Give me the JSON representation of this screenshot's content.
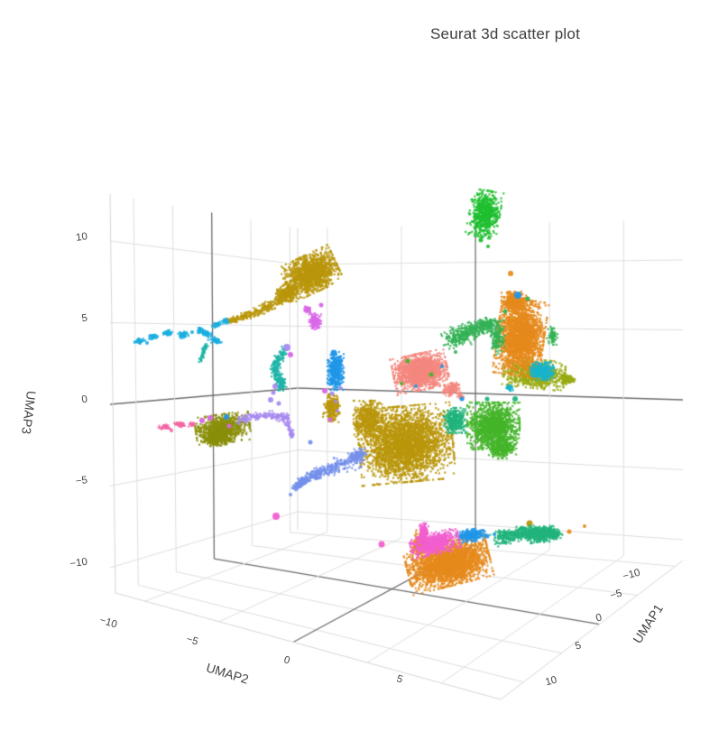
{
  "title": "Seurat 3d scatter plot",
  "chart_data": {
    "type": "scatter",
    "subtype": "scatter3d-umap",
    "title": "Seurat 3d scatter plot",
    "legend": "none shown",
    "grid": "on",
    "axes": {
      "x": {
        "label": "UMAP1",
        "range": [
          -11,
          13
        ],
        "ticks": [
          -10,
          -5,
          0,
          5,
          10
        ],
        "visible_tick_labels": [
          -10,
          -5,
          0,
          5,
          10
        ]
      },
      "y": {
        "label": "UMAP2",
        "range": [
          -12,
          14
        ],
        "ticks": [
          -10,
          -5,
          0,
          5,
          10
        ],
        "visible_tick_labels": [
          -10,
          -5,
          0,
          5
        ]
      },
      "z": {
        "label": "UMAP3",
        "range": [
          -11.5,
          12.9
        ],
        "ticks": [
          10,
          5,
          0,
          -5,
          -10
        ],
        "visible_tick_labels": [
          10,
          5,
          0,
          -5,
          -10
        ]
      }
    },
    "colors": {
      "grid_line": "#dedede",
      "zero_line": "#6e6e6e",
      "edge_line": "#d6d6d6",
      "title_text": "#3d3d3d",
      "tick_text": "#444444"
    },
    "palette": [
      "#1FBF2F",
      "#B9960B",
      "#8A8F0A",
      "#9AAB12",
      "#E68A1C",
      "#F4877E",
      "#21B47C",
      "#33B255",
      "#44B52A",
      "#20B5A8",
      "#2196E8",
      "#1BAEE0",
      "#18B4CE",
      "#7591EA",
      "#A78AF0",
      "#D966E8",
      "#F25FD0",
      "#F467A4"
    ],
    "clusters": [
      {
        "id": "cluster-green-top",
        "color": "#1FBF2F",
        "blobs": [
          [
            537,
            237,
            17,
            26,
            10,
            650
          ]
        ],
        "dots": [
          [
            533,
            266,
            2.5
          ],
          [
            541,
            273,
            2
          ]
        ]
      },
      {
        "id": "cluster-mustard",
        "color": "#B9960B",
        "blobs": [
          [
            345,
            303,
            30,
            21,
            -25,
            1400
          ],
          [
            318,
            325,
            13,
            10,
            -20,
            300
          ],
          [
            368,
            452,
            9,
            15,
            5,
            260
          ],
          [
            450,
            492,
            52,
            42,
            -5,
            3000
          ],
          [
            408,
            464,
            16,
            20,
            0,
            500
          ]
        ],
        "trails": [
          {
            "pts": [
              [
                312,
                331
              ],
              [
                296,
                340
              ],
              [
                281,
                347
              ],
              [
                266,
                352
              ],
              [
                253,
                356
              ]
            ],
            "r": [
              6,
              3
            ],
            "n": 260
          }
        ],
        "dots": [
          [
            587,
            580,
            3.5
          ]
        ]
      },
      {
        "id": "cluster-olive",
        "color": "#8A8F0A",
        "blobs": [
          [
            247,
            475,
            30,
            16,
            -8,
            800
          ],
          [
            240,
            486,
            17,
            8,
            -5,
            250
          ]
        ],
        "dots": []
      },
      {
        "id": "cluster-yellowgreen",
        "color": "#9AAB12",
        "blobs": [
          [
            592,
            414,
            34,
            16,
            6,
            850
          ],
          [
            628,
            420,
            9,
            6,
            0,
            100
          ]
        ],
        "dots": []
      },
      {
        "id": "cluster-orange",
        "color": "#E68A1C",
        "blobs": [
          [
            577,
            374,
            26,
            42,
            8,
            2200
          ],
          [
            570,
            334,
            14,
            11,
            0,
            350
          ],
          [
            497,
            624,
            46,
            25,
            -14,
            2600
          ],
          [
            466,
            602,
            8,
            13,
            15,
            250
          ]
        ],
        "dots": [
          [
            566,
            303,
            3
          ],
          [
            631,
            589,
            2.5
          ],
          [
            648,
            583,
            2
          ]
        ]
      },
      {
        "id": "cluster-salmon",
        "color": "#F4877E",
        "blobs": [
          [
            466,
            412,
            30,
            20,
            -12,
            1500
          ],
          [
            500,
            431,
            10,
            6,
            -30,
            150
          ]
        ],
        "trails": [
          {
            "pts": [
              [
                508,
                436
              ],
              [
                514,
                441
              ]
            ],
            "r": [
              3,
              2
            ],
            "n": 30
          }
        ],
        "dots": []
      },
      {
        "id": "cluster-springgreen",
        "color": "#21B47C",
        "blobs": [
          [
            504,
            466,
            12,
            14,
            0,
            330
          ],
          [
            600,
            593,
            17,
            8,
            -5,
            280
          ]
        ],
        "trails": [
          {
            "pts": [
              [
                552,
                597
              ],
              [
                570,
                592
              ],
              [
                588,
                589
              ],
              [
                606,
                589
              ],
              [
                619,
                592
              ]
            ],
            "r": [
              8,
              5
            ],
            "n": 650
          }
        ],
        "dots": [
          [
            571,
            442,
            3
          ],
          [
            540,
            442,
            2.5
          ],
          [
            528,
            447,
            2
          ]
        ]
      },
      {
        "id": "cluster-seagreen",
        "color": "#33B255",
        "blobs": [
          [
            552,
            374,
            8,
            19,
            0,
            150
          ],
          [
            612,
            372,
            6,
            10,
            0,
            70
          ]
        ],
        "trails": [
          {
            "pts": [
              [
                497,
                378
              ],
              [
                514,
                370
              ],
              [
                531,
                363
              ],
              [
                546,
                358
              ]
            ],
            "r": [
              11,
              6
            ],
            "n": 450
          }
        ],
        "dots": [
          [
            585,
            331,
            2.5
          ],
          [
            560,
            345,
            2.5
          ],
          [
            505,
            390,
            2
          ]
        ]
      },
      {
        "id": "cluster-midgreen",
        "color": "#44B52A",
        "blobs": [
          [
            547,
            472,
            29,
            26,
            0,
            1400
          ],
          [
            557,
            497,
            15,
            11,
            0,
            300
          ]
        ],
        "dots": [
          [
            452,
            400,
            2.5
          ],
          [
            478,
            415,
            2.5
          ],
          [
            445,
            425,
            2
          ]
        ]
      },
      {
        "id": "cluster-teal",
        "color": "#20B5A8",
        "trails": [
          {
            "pts": [
              [
                315,
                388
              ],
              [
                309,
                397
              ],
              [
                305,
                407
              ],
              [
                307,
                417
              ],
              [
                313,
                424
              ],
              [
                309,
                430
              ]
            ],
            "r": [
              4.5,
              5
            ],
            "n": 260
          },
          {
            "pts": [
              [
                228,
                382
              ],
              [
                225,
                392
              ],
              [
                222,
                401
              ]
            ],
            "r": [
              2.5,
              2.5
            ],
            "n": 60
          }
        ],
        "dots": []
      },
      {
        "id": "cluster-azure",
        "color": "#2196E8",
        "blobs": [
          [
            372,
            411,
            9,
            21,
            0,
            420
          ],
          [
            522,
            593,
            16,
            7,
            -8,
            260
          ]
        ],
        "dots": [
          [
            370,
            391,
            3.5
          ],
          [
            574,
            327,
            4
          ],
          [
            512,
            442,
            2.5
          ],
          [
            461,
            428,
            2
          ],
          [
            490,
            406,
            2
          ],
          [
            251,
            462,
            3
          ],
          [
            540,
            594,
            2.5
          ],
          [
            548,
            592,
            2
          ]
        ]
      },
      {
        "id": "cluster-skyblue",
        "color": "#1BAEE0",
        "blobs": [
          [
            155,
            378,
            6,
            3,
            -10,
            45
          ],
          [
            170,
            373,
            5,
            3,
            -10,
            40
          ],
          [
            186,
            369,
            5,
            3,
            -8,
            40
          ],
          [
            203,
            371,
            6,
            3.5,
            -5,
            50
          ],
          [
            222,
            366,
            5,
            3,
            -10,
            40
          ],
          [
            240,
            360,
            5,
            3,
            -15,
            40
          ],
          [
            250,
            356,
            4,
            3,
            -15,
            30
          ],
          [
            228,
            369,
            7,
            3,
            15,
            50
          ],
          [
            238,
            377,
            8,
            3.5,
            15,
            60
          ]
        ],
        "dots": [
          [
            163,
            380,
            2
          ],
          [
            213,
            368,
            2
          ]
        ]
      },
      {
        "id": "cluster-cyan",
        "color": "#18B4CE",
        "blobs": [
          [
            601,
            411,
            13,
            10,
            0,
            320
          ],
          [
            565,
            430,
            4,
            3,
            0,
            30
          ]
        ],
        "dots": []
      },
      {
        "id": "cluster-cornflower",
        "color": "#7591EA",
        "blobs": [
          [
            396,
            505,
            10,
            8,
            0,
            120
          ]
        ],
        "trails": [
          {
            "pts": [
              [
                393,
                512
              ],
              [
                372,
                517
              ],
              [
                353,
                524
              ],
              [
                337,
                532
              ],
              [
                327,
                541
              ]
            ],
            "r": [
              9,
              3
            ],
            "n": 420
          }
        ],
        "dots": [
          [
            344,
            490,
            2.5
          ],
          [
            322,
            548,
            2
          ]
        ]
      },
      {
        "id": "cluster-violet",
        "color": "#A78AF0",
        "trails": [
          {
            "pts": [
              [
                265,
                466
              ],
              [
                280,
                462
              ],
              [
                295,
                460
              ],
              [
                310,
                461
              ],
              [
                319,
                464
              ]
            ],
            "r": [
              4,
              5
            ],
            "n": 200
          },
          {
            "pts": [
              [
                319,
                469
              ],
              [
                322,
                477
              ],
              [
                324,
                484
              ]
            ],
            "r": [
              3.5,
              2.5
            ],
            "n": 60
          }
        ],
        "dots": [
          [
            300,
            443,
            3
          ],
          [
            309,
            447,
            2.5
          ],
          [
            318,
            385,
            4
          ],
          [
            305,
            428,
            3
          ],
          [
            303,
            435,
            2.5
          ],
          [
            368,
            436,
            2.5
          ],
          [
            372,
            445,
            2
          ],
          [
            374,
            455,
            2
          ],
          [
            378,
            430,
            2
          ]
        ]
      },
      {
        "id": "cluster-orchid",
        "color": "#D966E8",
        "blobs": [
          [
            349,
            356,
            7,
            9,
            0,
            130
          ],
          [
            341,
            343,
            4,
            3.5,
            0,
            40
          ]
        ],
        "dots": [
          [
            356,
            338,
            2.5
          ],
          [
            322,
            393,
            3
          ],
          [
            224,
            466,
            3
          ],
          [
            233,
            463,
            3
          ],
          [
            254,
            472,
            2.5
          ],
          [
            360,
            433,
            3
          ],
          [
            366,
            465,
            2.5
          ]
        ]
      },
      {
        "id": "cluster-magenta",
        "color": "#F25FD0",
        "blobs": [
          [
            482,
            602,
            27,
            12,
            -12,
            650
          ],
          [
            470,
            590,
            5,
            10,
            0,
            120
          ]
        ],
        "dots": [
          [
            423,
            603,
            3.5
          ],
          [
            306,
            572,
            4
          ]
        ]
      },
      {
        "id": "cluster-pink",
        "color": "#F467A4",
        "blobs": [
          [
            182,
            473,
            7,
            2.8,
            8,
            45
          ],
          [
            199,
            470,
            6,
            2.8,
            8,
            40
          ],
          [
            213,
            470,
            4,
            2.5,
            0,
            25
          ]
        ],
        "dots": [
          [
            190,
            477,
            2
          ]
        ]
      }
    ]
  }
}
